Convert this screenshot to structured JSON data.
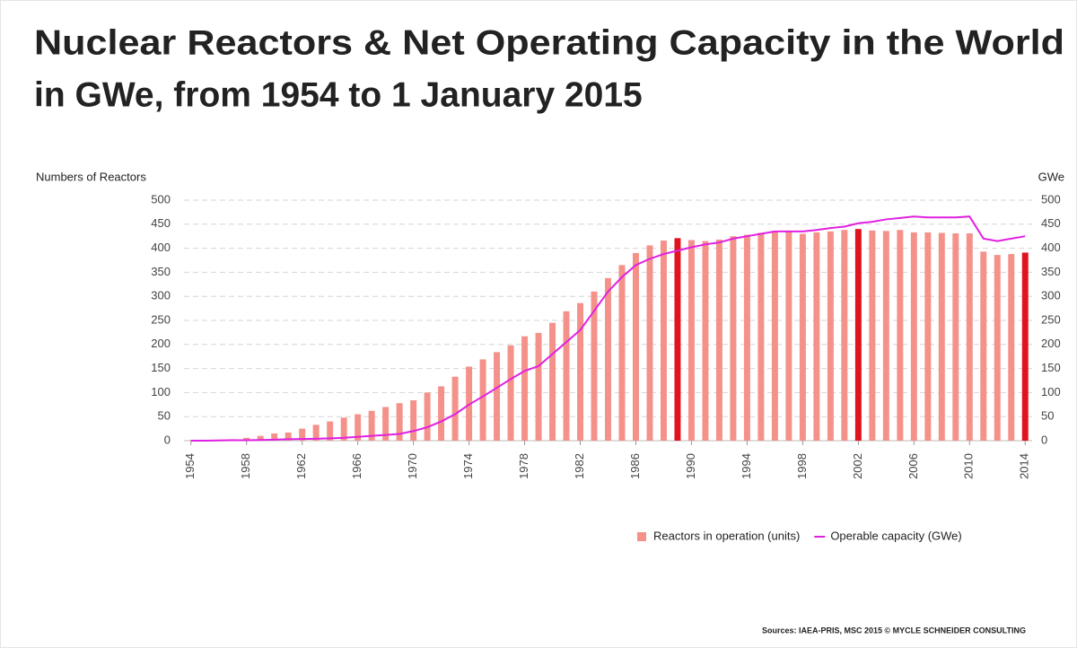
{
  "chart_data": {
    "type": "bar_line",
    "title": [
      "Nuclear Reactors & Net Operating Capacity in the World",
      "in GWe, from 1954 to 1 January 2015"
    ],
    "ylabel": "Numbers of Reactors",
    "y2label": "GWe",
    "source": "Sources: IAEA-PRIS, MSC 2015 © MYCLE SCHNEIDER CONSULTING",
    "categories": [
      "1954",
      null,
      null,
      null,
      "1958",
      null,
      null,
      null,
      "1962",
      null,
      null,
      null,
      "1966",
      null,
      null,
      null,
      "1970",
      null,
      null,
      null,
      "1974",
      null,
      null,
      null,
      "1978",
      null,
      null,
      null,
      "1982",
      null,
      null,
      null,
      "1986",
      null,
      null,
      null,
      "1990",
      null,
      null,
      null,
      "1994",
      null,
      null,
      null,
      "1998",
      null,
      null,
      null,
      "2002",
      null,
      null,
      null,
      "2006",
      null,
      null,
      null,
      "2010",
      null,
      null,
      null,
      "2014"
    ],
    "series": [
      {
        "name": "Reactors in operation (units)",
        "type": "bar",
        "axis": "y",
        "color": "#f4928a",
        "colors": [
          "#f4928a",
          "#f4928a",
          "#f4928a",
          "#f4928a",
          "#f4928a",
          "#f4928a",
          "#f4928a",
          "#f4928a",
          "#f4928a",
          "#f4928a",
          "#f4928a",
          "#f4928a",
          "#f4928a",
          "#f4928a",
          "#f4928a",
          "#f4928a",
          "#f4928a",
          "#f4928a",
          "#f4928a",
          "#f4928a",
          "#f4928a",
          "#f4928a",
          "#f4928a",
          "#f4928a",
          "#f4928a",
          "#f4928a",
          "#f4928a",
          "#f4928a",
          "#f4928a",
          "#f4928a",
          "#f4928a",
          "#f4928a",
          "#f4928a",
          "#f4928a",
          "#f4928a",
          "#e0141e",
          "#f4928a",
          "#f4928a",
          "#f4928a",
          "#f4928a",
          "#f4928a",
          "#f4928a",
          "#f4928a",
          "#f4928a",
          "#f4928a",
          "#f4928a",
          "#f4928a",
          "#f4928a",
          "#e0141e",
          "#f4928a",
          "#f4928a",
          "#f4928a",
          "#f4928a",
          "#f4928a",
          "#f4928a",
          "#f4928a",
          "#f4928a",
          "#f4928a",
          "#f4928a",
          "#f4928a",
          "#e0141e"
        ],
        "values": [
          1,
          1,
          2,
          3,
          6,
          10,
          15,
          17,
          25,
          33,
          40,
          48,
          55,
          62,
          70,
          78,
          84,
          100,
          113,
          133,
          154,
          169,
          184,
          198,
          217,
          224,
          245,
          269,
          286,
          310,
          338,
          365,
          390,
          406,
          416,
          421,
          417,
          415,
          418,
          425,
          428,
          432,
          436,
          434,
          430,
          433,
          435,
          438,
          440,
          437,
          436,
          438,
          433,
          433,
          432,
          431,
          431,
          393,
          386,
          388,
          391
        ]
      },
      {
        "name": "Operable capacity (GWe)",
        "type": "line",
        "axis": "y2",
        "color": "#e020e0",
        "values": [
          0,
          0,
          0.5,
          1,
          1,
          1.5,
          2,
          3,
          3.5,
          4,
          5,
          6,
          8,
          10,
          12,
          14,
          20,
          28,
          40,
          55,
          75,
          92,
          110,
          128,
          145,
          155,
          180,
          205,
          230,
          270,
          310,
          340,
          365,
          378,
          388,
          395,
          402,
          408,
          412,
          420,
          425,
          430,
          435,
          435,
          435,
          438,
          442,
          445,
          452,
          455,
          460,
          463,
          466,
          464,
          464,
          464,
          466,
          420,
          415,
          420,
          425
        ]
      }
    ],
    "ylim": [
      0,
      500
    ],
    "yticks": [
      0,
      50,
      100,
      150,
      200,
      250,
      300,
      350,
      400,
      450,
      500
    ],
    "y2lim": [
      0,
      500
    ],
    "y2ticks": [
      0,
      50,
      100,
      150,
      200,
      250,
      300,
      350,
      400,
      450,
      500
    ],
    "grid": true,
    "legend": "bottom-right"
  }
}
